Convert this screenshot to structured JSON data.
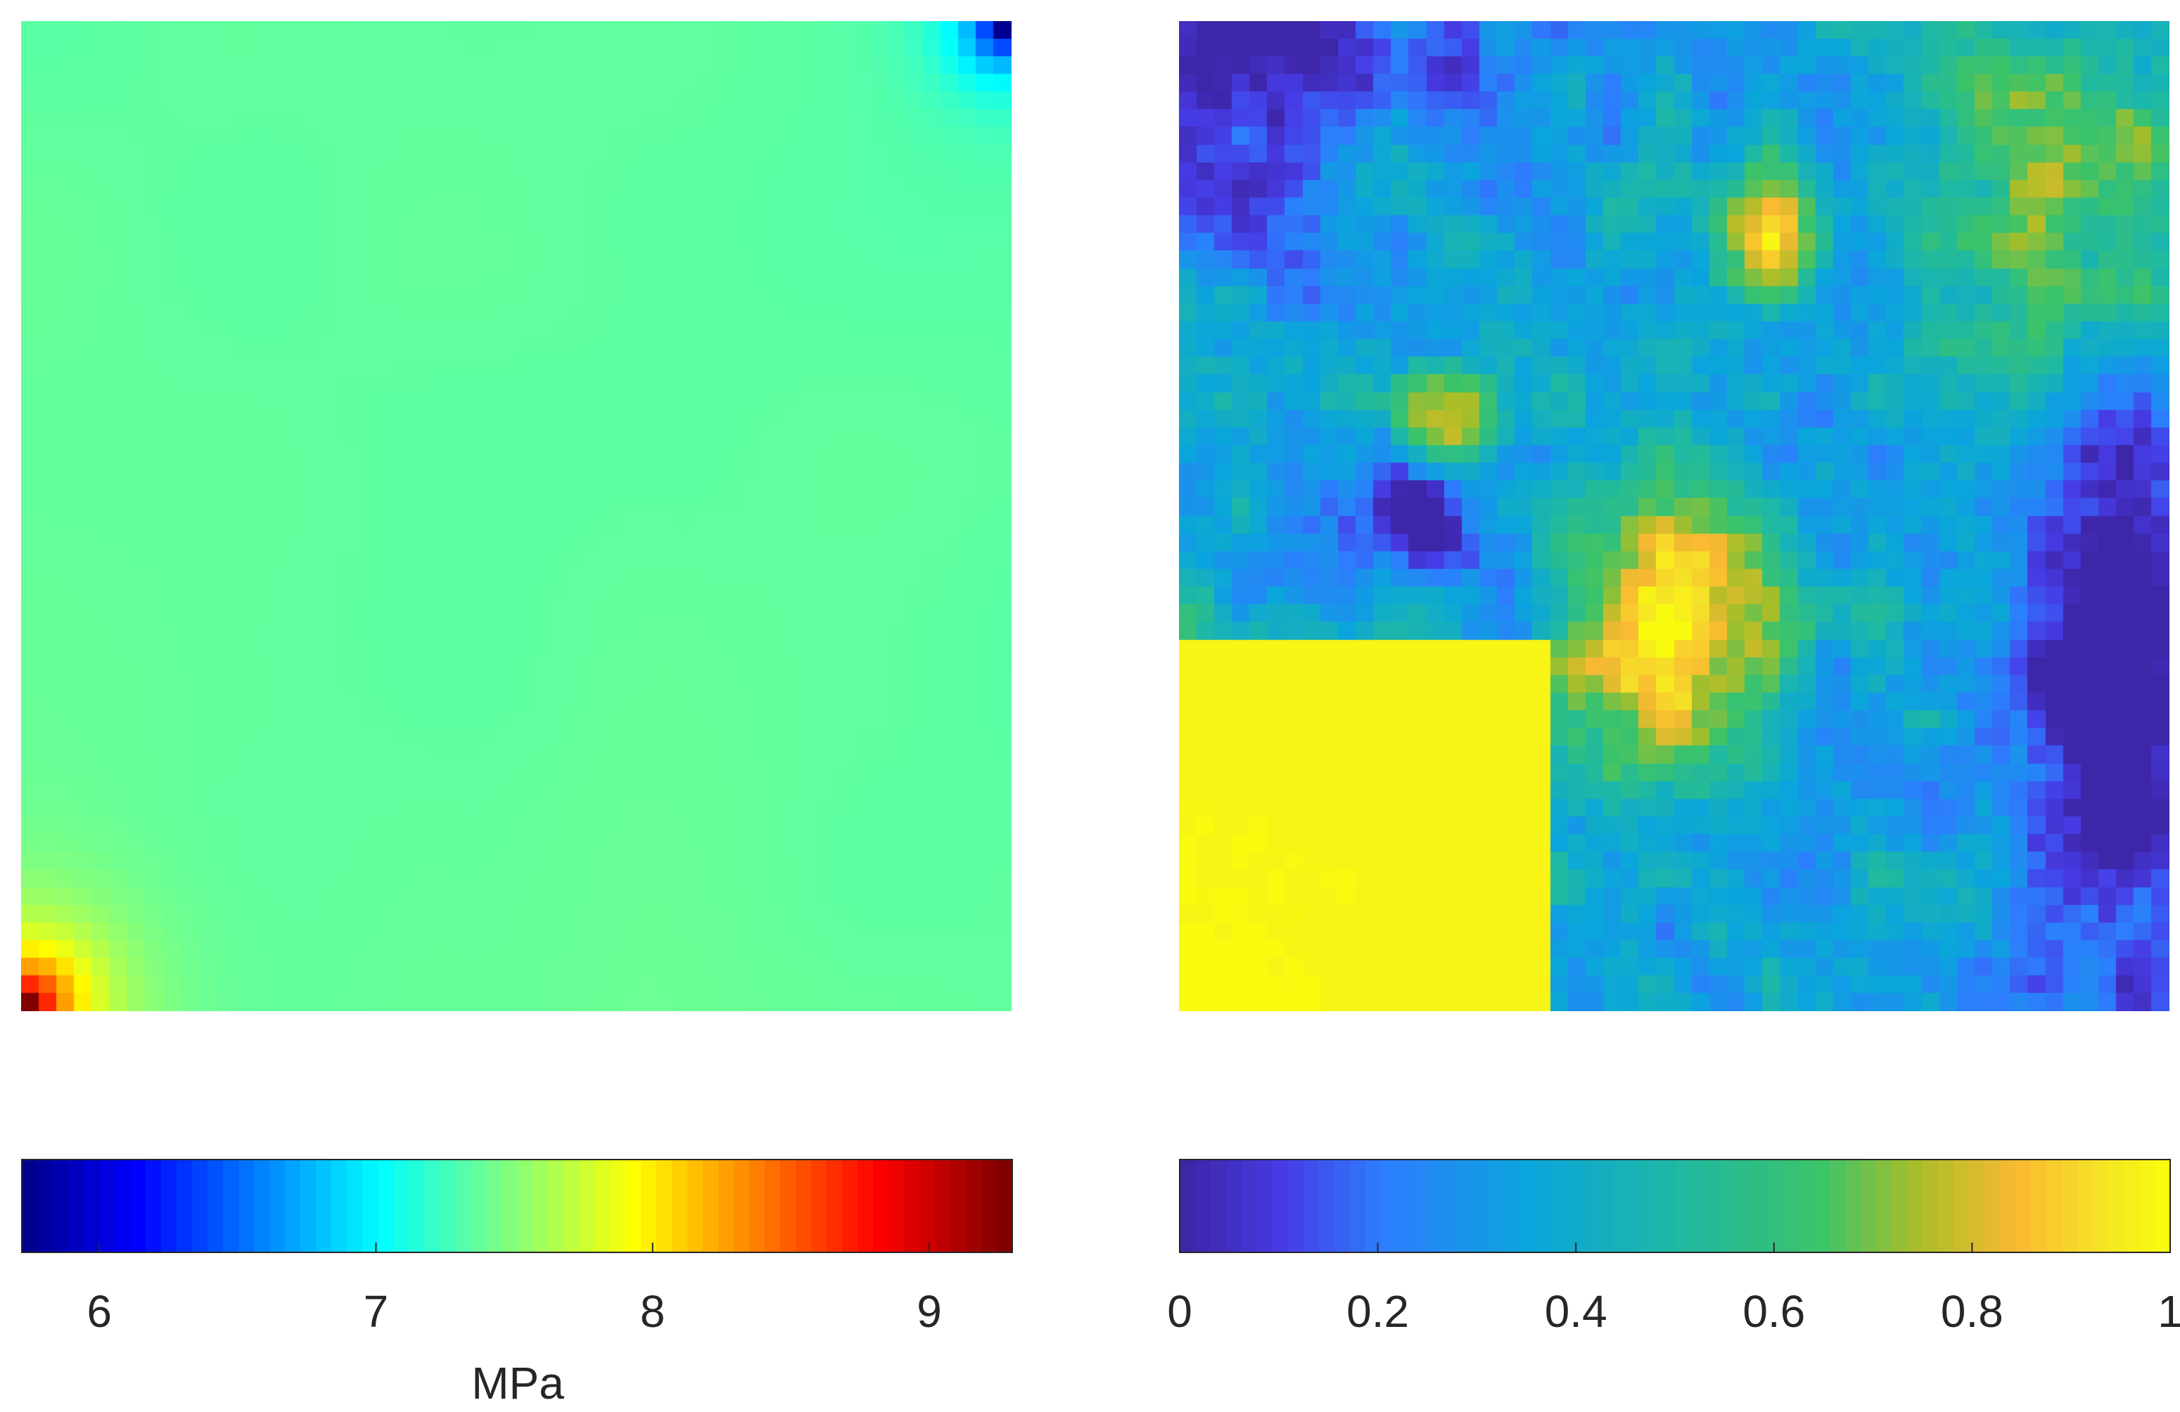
{
  "chart_data": [
    {
      "type": "heatmap",
      "title": "",
      "xlabel": "",
      "ylabel": "",
      "grid": false,
      "axes_visible": false,
      "colormap": "jet",
      "grid_size": [
        56,
        56
      ],
      "clim": [
        5.72,
        9.3
      ],
      "colorbar": {
        "orientation": "horizontal",
        "location": "below",
        "ticks": [
          6,
          7,
          8,
          9
        ],
        "tick_labels": [
          "6",
          "7",
          "8",
          "9"
        ],
        "label": "MPa"
      },
      "baseline_value": 7.4,
      "field_description_points": [
        {
          "x": 1,
          "y": 1,
          "value": 9.3
        },
        {
          "x": 3,
          "y": 3,
          "value": 8.3
        },
        {
          "x": 7,
          "y": 7,
          "value": 7.6
        },
        {
          "x": 28,
          "y": 28,
          "value": 7.4
        },
        {
          "x": 54,
          "y": 54,
          "value": 7.0
        },
        {
          "x": 56,
          "y": 56,
          "value": 5.8
        }
      ]
    },
    {
      "type": "heatmap",
      "title": "",
      "xlabel": "",
      "ylabel": "",
      "grid": false,
      "axes_visible": false,
      "colormap": "parula",
      "grid_size": [
        56,
        56
      ],
      "clim": [
        0,
        1
      ],
      "colorbar": {
        "orientation": "horizontal",
        "location": "below",
        "ticks": [
          0,
          0.2,
          0.4,
          0.6,
          0.8,
          1
        ],
        "tick_labels": [
          "0",
          "0.2",
          "0.4",
          "0.6",
          "0.8",
          "1"
        ],
        "label": ""
      },
      "regions": [
        {
          "area": "bottom-left quadrant",
          "value": 1.0
        },
        {
          "area": "center",
          "value": 0.9
        },
        {
          "area": "right edge middle-to-bottom",
          "value": 0.05
        },
        {
          "area": "top-left corner",
          "value": 0.1
        },
        {
          "area": "top center",
          "value": 0.35
        },
        {
          "area": "top right",
          "value": 0.7
        }
      ]
    }
  ],
  "colors": {
    "background": "#ffffff",
    "axis": "#262626"
  }
}
